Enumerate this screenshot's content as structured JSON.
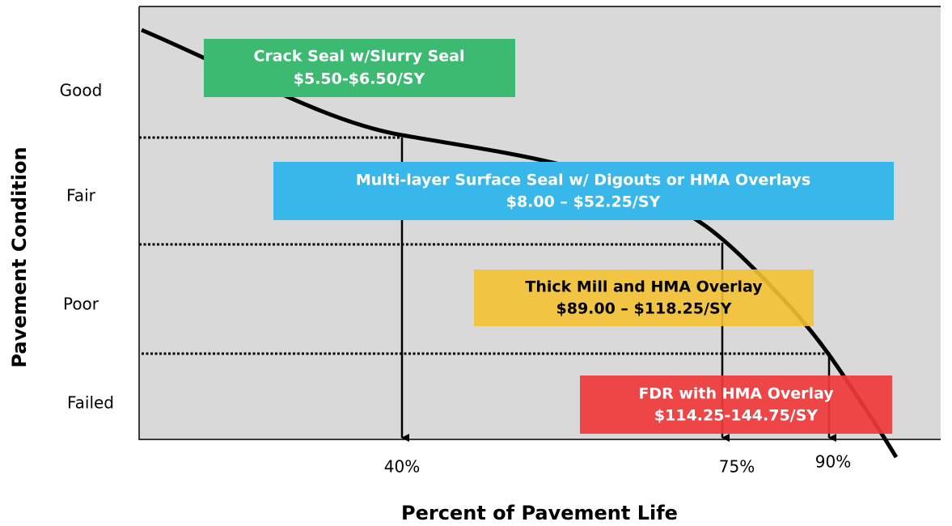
{
  "y_axis_label": "Pavement Condition",
  "x_axis_label": "Percent of Pavement Life",
  "conditions": [
    "Good",
    "Fair",
    "Poor",
    "Failed"
  ],
  "life_marks": [
    "40%",
    "75%",
    "90%"
  ],
  "treatments": [
    {
      "name": "Crack Seal w/Slurry Seal",
      "cost": "$5.50-$6.50/SY"
    },
    {
      "name": "Multi-layer Surface Seal w/ Digouts or HMA Overlays",
      "cost": "$8.00 – $52.25/SY"
    },
    {
      "name": "Thick Mill and HMA Overlay",
      "cost": "$89.00 – $118.25/SY"
    },
    {
      "name": "FDR with HMA Overlay",
      "cost": "$114.25-144.75/SY"
    }
  ]
}
